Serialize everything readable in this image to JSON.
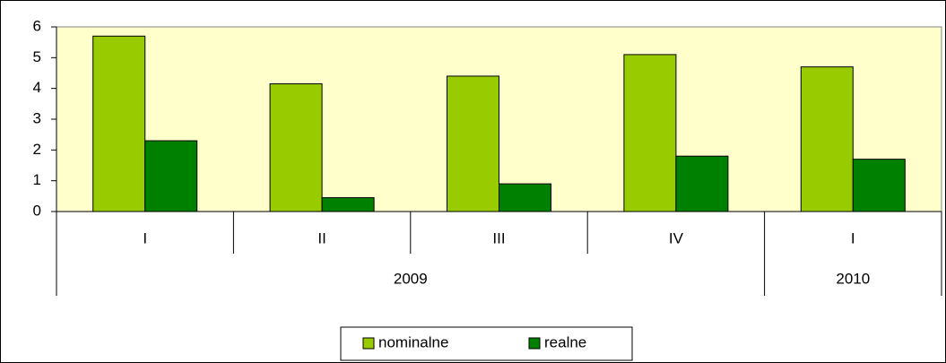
{
  "chart_data": {
    "type": "bar",
    "groups": [
      {
        "name": "2009",
        "categories": [
          "I",
          "II",
          "III",
          "IV"
        ]
      },
      {
        "name": "2010",
        "categories": [
          "I"
        ]
      }
    ],
    "series": [
      {
        "name": "nominalne",
        "color": "#99cc00",
        "values": [
          5.7,
          4.15,
          4.4,
          5.1,
          4.7
        ]
      },
      {
        "name": "realne",
        "color": "#008000",
        "values": [
          2.3,
          0.45,
          0.9,
          1.8,
          1.7
        ]
      }
    ],
    "ylim": [
      0,
      6
    ],
    "yticks": [
      0,
      1,
      2,
      3,
      4,
      5,
      6
    ],
    "grid": false,
    "legend": "bottom",
    "plot_background": "#ffffcc"
  }
}
